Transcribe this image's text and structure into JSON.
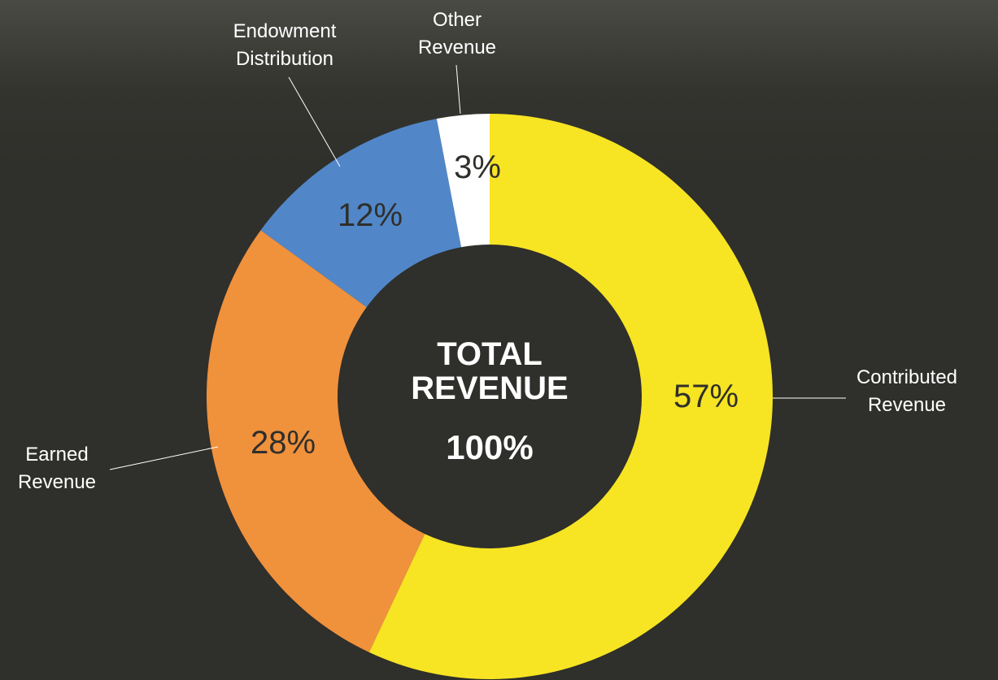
{
  "chart_data": {
    "type": "pie",
    "donut": true,
    "center_title": "TOTAL REVENUE",
    "total": 100,
    "total_label": "100%",
    "categories": [
      "Contributed Revenue",
      "Earned Revenue",
      "Endowment Distribution",
      "Other Revenue"
    ],
    "values": [
      57,
      28,
      12,
      3
    ],
    "value_labels": [
      "57%",
      "28%",
      "12%",
      "3%"
    ],
    "colors": [
      "#f7e423",
      "#f0913c",
      "#5187c8",
      "#ffffff"
    ]
  }
}
